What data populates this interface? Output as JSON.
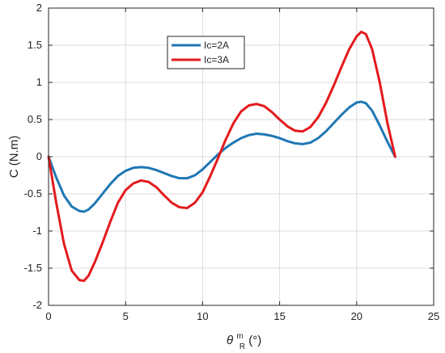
{
  "chart_data": {
    "type": "line",
    "xlabel": "θ",
    "xlabel_sup": "m",
    "xlabel_sub": "R",
    "xlabel_unit": "(°)",
    "ylabel": "C (N.m)",
    "xlim": [
      0,
      25
    ],
    "ylim": [
      -2,
      2
    ],
    "xticks": [
      0,
      5,
      10,
      15,
      20,
      25
    ],
    "yticks": [
      -2,
      -1.5,
      -1,
      -0.5,
      0,
      0.5,
      1,
      1.5,
      2
    ],
    "grid": true,
    "legend_position": "top-center",
    "x": [
      0,
      0.5,
      1,
      1.5,
      2,
      2.3,
      2.6,
      3,
      3.5,
      4,
      4.5,
      5,
      5.5,
      6,
      6.5,
      7,
      7.5,
      8,
      8.5,
      9,
      9.5,
      10,
      10.5,
      11,
      11.5,
      12,
      12.5,
      13,
      13.5,
      14,
      14.5,
      15,
      15.5,
      16,
      16.5,
      17,
      17.5,
      18,
      18.5,
      19,
      19.5,
      20,
      20.3,
      20.6,
      21,
      21.5,
      22,
      22.5
    ],
    "series": [
      {
        "name": "Ic=2A",
        "color": "#1f77b4",
        "values": [
          0,
          -0.28,
          -0.52,
          -0.67,
          -0.73,
          -0.74,
          -0.71,
          -0.63,
          -0.5,
          -0.37,
          -0.26,
          -0.19,
          -0.15,
          -0.14,
          -0.15,
          -0.18,
          -0.22,
          -0.26,
          -0.29,
          -0.29,
          -0.25,
          -0.17,
          -0.07,
          0.03,
          0.12,
          0.19,
          0.25,
          0.29,
          0.31,
          0.3,
          0.28,
          0.25,
          0.21,
          0.18,
          0.17,
          0.19,
          0.25,
          0.34,
          0.45,
          0.56,
          0.66,
          0.73,
          0.74,
          0.72,
          0.62,
          0.42,
          0.2,
          0
        ]
      },
      {
        "name": "Ic=3A",
        "color": "#e31a1c",
        "values": [
          0,
          -0.62,
          -1.17,
          -1.53,
          -1.66,
          -1.67,
          -1.6,
          -1.42,
          -1.16,
          -0.88,
          -0.62,
          -0.45,
          -0.36,
          -0.32,
          -0.34,
          -0.41,
          -0.52,
          -0.62,
          -0.68,
          -0.69,
          -0.62,
          -0.48,
          -0.26,
          -0.02,
          0.23,
          0.45,
          0.61,
          0.69,
          0.71,
          0.68,
          0.6,
          0.5,
          0.41,
          0.35,
          0.34,
          0.4,
          0.53,
          0.72,
          0.95,
          1.2,
          1.44,
          1.62,
          1.68,
          1.65,
          1.45,
          1.0,
          0.45,
          0
        ]
      }
    ]
  }
}
